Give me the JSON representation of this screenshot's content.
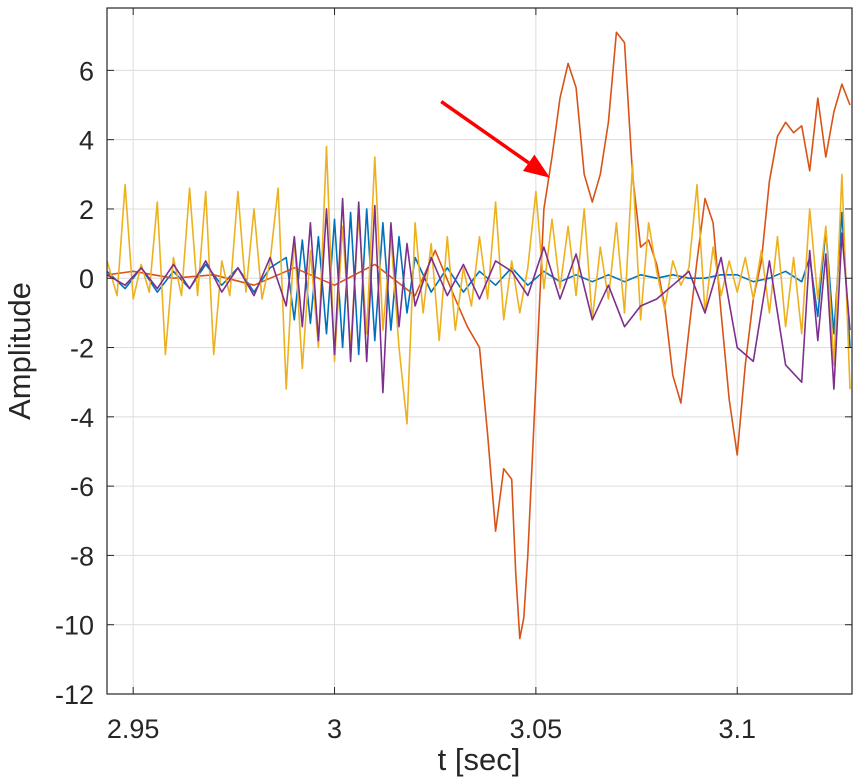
{
  "chart_data": {
    "type": "line",
    "title": "",
    "xlabel": "t [sec]",
    "ylabel": "Amplitude",
    "xlim": [
      2.9435,
      3.1285
    ],
    "ylim": [
      -12,
      7.8
    ],
    "grid": true,
    "x_ticks": [
      2.95,
      3.0,
      3.05,
      3.1
    ],
    "x_tick_labels": [
      "2.95",
      "3",
      "3.05",
      "3.1"
    ],
    "y_ticks": [
      6,
      4,
      2,
      0,
      -2,
      -4,
      -6,
      -8,
      -10,
      -12
    ],
    "y_tick_labels": [
      "6",
      "4",
      "2",
      "0",
      "-2",
      "-4",
      "-6",
      "-8",
      "-10",
      "-12"
    ],
    "annotation": {
      "type": "arrow",
      "color": "#ff0000",
      "from": [
        3.0265,
        5.1
      ],
      "to": [
        3.0535,
        2.9
      ]
    },
    "series": [
      {
        "color": "#0072bd",
        "x": [
          2.9435,
          2.948,
          2.952,
          2.956,
          2.96,
          2.964,
          2.968,
          2.972,
          2.976,
          2.98,
          2.984,
          2.988,
          2.99,
          2.992,
          2.994,
          2.996,
          2.998,
          3.0,
          3.002,
          3.004,
          3.006,
          3.008,
          3.01,
          3.012,
          3.014,
          3.016,
          3.018,
          3.02,
          3.024,
          3.028,
          3.032,
          3.036,
          3.04,
          3.044,
          3.048,
          3.052,
          3.056,
          3.06,
          3.064,
          3.068,
          3.072,
          3.076,
          3.08,
          3.084,
          3.088,
          3.092,
          3.096,
          3.1,
          3.104,
          3.108,
          3.112,
          3.116,
          3.118,
          3.12,
          3.122,
          3.124,
          3.126,
          3.128
        ],
        "y": [
          0.2,
          -0.3,
          0.3,
          -0.4,
          0.2,
          -0.3,
          0.4,
          -0.2,
          0.3,
          -0.4,
          0.3,
          0.6,
          -1.2,
          1.1,
          -1.3,
          1.2,
          -1.6,
          1.7,
          -2.0,
          1.9,
          -2.2,
          2.0,
          -1.8,
          1.6,
          -1.5,
          1.2,
          -1.0,
          0.6,
          -0.4,
          0.3,
          -0.4,
          0.2,
          -0.2,
          0.3,
          -0.2,
          0.2,
          -0.1,
          0.1,
          -0.1,
          0.1,
          -0.1,
          0.1,
          0.0,
          0.1,
          0.0,
          0.0,
          0.1,
          0.1,
          -0.1,
          0.0,
          0.2,
          -0.1,
          0.6,
          -1.1,
          1.4,
          -1.6,
          1.9,
          -2.0
        ]
      },
      {
        "color": "#d95319",
        "x": [
          2.9435,
          2.95,
          2.96,
          2.97,
          2.98,
          2.99,
          3.0,
          3.01,
          3.02,
          3.025,
          3.03,
          3.033,
          3.036,
          3.038,
          3.04,
          3.042,
          3.044,
          3.045,
          3.046,
          3.047,
          3.048,
          3.05,
          3.052,
          3.054,
          3.056,
          3.058,
          3.06,
          3.062,
          3.064,
          3.066,
          3.068,
          3.07,
          3.072,
          3.074,
          3.076,
          3.078,
          3.08,
          3.082,
          3.084,
          3.086,
          3.088,
          3.09,
          3.092,
          3.094,
          3.096,
          3.098,
          3.1,
          3.102,
          3.104,
          3.106,
          3.108,
          3.11,
          3.112,
          3.114,
          3.116,
          3.118,
          3.12,
          3.122,
          3.124,
          3.126,
          3.128
        ],
        "y": [
          0.1,
          0.2,
          0.0,
          0.1,
          -0.2,
          0.3,
          -0.2,
          0.4,
          -0.5,
          0.8,
          -0.6,
          -1.4,
          -2.0,
          -4.5,
          -7.3,
          -5.5,
          -5.8,
          -8.5,
          -10.4,
          -9.8,
          -8.0,
          -3.0,
          2.0,
          3.5,
          5.2,
          6.2,
          5.5,
          3.0,
          2.2,
          3.0,
          4.5,
          7.1,
          6.8,
          3.0,
          0.9,
          1.1,
          0.4,
          -0.8,
          -2.8,
          -3.6,
          -1.5,
          0.5,
          2.3,
          1.6,
          -1.0,
          -3.5,
          -5.1,
          -2.5,
          -0.6,
          0.5,
          2.8,
          4.1,
          4.5,
          4.2,
          4.4,
          3.1,
          5.2,
          3.5,
          4.8,
          5.6,
          5.0
        ]
      },
      {
        "color": "#edb120",
        "x": [
          2.9435,
          2.946,
          2.948,
          2.95,
          2.952,
          2.954,
          2.956,
          2.958,
          2.96,
          2.962,
          2.964,
          2.966,
          2.968,
          2.97,
          2.972,
          2.974,
          2.976,
          2.978,
          2.98,
          2.982,
          2.984,
          2.986,
          2.988,
          2.99,
          2.992,
          2.994,
          2.996,
          2.998,
          3.0,
          3.002,
          3.004,
          3.006,
          3.008,
          3.01,
          3.012,
          3.014,
          3.016,
          3.018,
          3.02,
          3.022,
          3.024,
          3.026,
          3.028,
          3.03,
          3.032,
          3.034,
          3.036,
          3.038,
          3.04,
          3.042,
          3.044,
          3.046,
          3.048,
          3.05,
          3.052,
          3.054,
          3.056,
          3.058,
          3.06,
          3.062,
          3.064,
          3.066,
          3.068,
          3.07,
          3.072,
          3.074,
          3.076,
          3.078,
          3.08,
          3.082,
          3.084,
          3.086,
          3.088,
          3.09,
          3.092,
          3.094,
          3.096,
          3.098,
          3.1,
          3.102,
          3.104,
          3.106,
          3.108,
          3.11,
          3.112,
          3.114,
          3.116,
          3.118,
          3.12,
          3.122,
          3.124,
          3.126,
          3.128
        ],
        "y": [
          0.5,
          -0.5,
          2.7,
          -0.6,
          0.4,
          -0.4,
          2.2,
          -2.2,
          0.6,
          -0.5,
          2.6,
          -0.5,
          2.5,
          -2.2,
          0.5,
          -0.5,
          2.5,
          -0.4,
          2.0,
          -0.6,
          0.5,
          2.6,
          -3.2,
          1.2,
          -2.6,
          0.8,
          -2.0,
          3.8,
          -2.4,
          1.5,
          -2.0,
          1.8,
          -1.6,
          3.5,
          -1.5,
          1.2,
          -2.0,
          -4.2,
          1.6,
          -1.0,
          1.0,
          -1.8,
          1.2,
          -1.5,
          0.3,
          -0.8,
          1.2,
          -0.6,
          2.2,
          -1.2,
          0.5,
          -1.0,
          0.3,
          2.5,
          -0.3,
          1.7,
          -0.3,
          1.5,
          -0.5,
          2.0,
          -1.2,
          0.9,
          -0.6,
          1.6,
          -1.0,
          3.3,
          -1.2,
          1.6,
          0.2,
          -0.9,
          0.5,
          -0.2,
          0.3,
          2.7,
          -1.0,
          0.9,
          -0.5,
          0.5,
          -0.4,
          0.6,
          -0.6,
          0.8,
          -1.0,
          1.2,
          -1.4,
          0.6,
          -1.6,
          2.0,
          -0.6,
          1.5,
          -2.5,
          3.0,
          -3.2
        ]
      },
      {
        "color": "#7e2f8e",
        "x": [
          2.9435,
          2.948,
          2.952,
          2.956,
          2.96,
          2.964,
          2.968,
          2.972,
          2.976,
          2.98,
          2.984,
          2.988,
          2.99,
          2.992,
          2.994,
          2.996,
          2.998,
          3.0,
          3.002,
          3.004,
          3.006,
          3.008,
          3.01,
          3.012,
          3.014,
          3.016,
          3.018,
          3.02,
          3.024,
          3.028,
          3.032,
          3.036,
          3.04,
          3.044,
          3.048,
          3.052,
          3.056,
          3.06,
          3.064,
          3.068,
          3.072,
          3.076,
          3.08,
          3.084,
          3.088,
          3.092,
          3.096,
          3.1,
          3.104,
          3.108,
          3.112,
          3.116,
          3.118,
          3.12,
          3.122,
          3.124,
          3.126,
          3.128
        ],
        "y": [
          0.1,
          -0.2,
          0.3,
          -0.3,
          0.4,
          -0.3,
          0.5,
          -0.4,
          0.3,
          -0.5,
          0.6,
          -0.8,
          1.2,
          -1.4,
          1.6,
          -1.8,
          2.0,
          -2.2,
          2.3,
          -2.4,
          2.2,
          -2.4,
          2.1,
          -3.3,
          1.6,
          -1.4,
          1.0,
          -0.8,
          0.6,
          -0.5,
          0.4,
          -0.6,
          0.5,
          0.2,
          -0.5,
          0.9,
          -0.6,
          0.7,
          -1.2,
          -0.2,
          -1.4,
          -0.8,
          -0.6,
          -0.2,
          0.2,
          -1.0,
          0.6,
          -2.0,
          -2.4,
          0.5,
          -2.5,
          -3.0,
          0.8,
          -1.8,
          0.7,
          -3.2,
          1.3,
          -1.5
        ]
      }
    ]
  }
}
